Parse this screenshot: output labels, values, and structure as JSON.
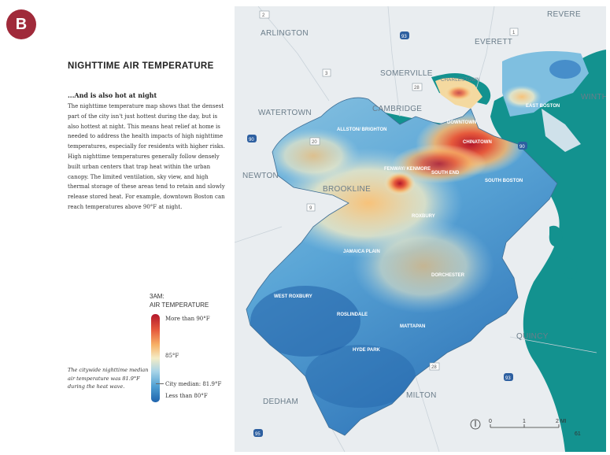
{
  "panel": {
    "badge": "B"
  },
  "text_panel": {
    "title": "NIGHTTIME AIR TEMPERATURE",
    "subhead": "...And is also hot at night",
    "body": "The nighttime temperature map shows that the densest part of the city isn't just hottest during the day, but is also hottest at night. This means heat relief at home is needed to address the health impacts of high nighttime temperatures, especially for residents with higher risks. High nighttime temperatures generally follow densely built urban centers that trap heat within the urban canopy. The limited ventilation, sky view, and high thermal storage of these areas tend to retain and slowly release stored heat. For example, downtown Boston can reach temperatures above 90°F at night.",
    "note": "The citywide nighttime median air temperature was 81.9°F during the heat wave."
  },
  "legend": {
    "title_line1": "3AM:",
    "title_line2": "AIR TEMPERATURE",
    "high": "More than 90°F",
    "mid": "85°F",
    "median": "City median: 81.9°F",
    "low": "Less than 80°F",
    "colors": [
      "#b3172b",
      "#e65a3c",
      "#f7b267",
      "#f4ecc6",
      "#a8d4e8",
      "#4f9fd2",
      "#1f64ad"
    ]
  },
  "map": {
    "place_labels": [
      "ARLINGTON",
      "EVERETT",
      "REVERE",
      "SOMERVILLE",
      "CHARLESTOWN",
      "WINTHR",
      "WATERTOWN",
      "CAMBRIDGE",
      "EAST BOSTON",
      "DOWNTOWN",
      "CHINATOWN",
      "ALLSTON/ BRIGHTON",
      "NEWTON",
      "FENWAY/ KENMORE",
      "SOUTH END",
      "SOUTH BOSTON",
      "BROOKLINE",
      "ROXBURY",
      "JAMAICA PLAIN",
      "DORCHESTER",
      "WEST ROXBURY",
      "ROSLINDALE",
      "MATTAPAN",
      "HYDE PARK",
      "QUINCY",
      "MILTON",
      "DEDHAM"
    ],
    "route_shields": [
      "2",
      "93",
      "1",
      "3",
      "28",
      "20",
      "90",
      "90",
      "9",
      "28",
      "93",
      "95"
    ],
    "scale": {
      "zero": "0",
      "one": "1",
      "two": "2 MI"
    },
    "page_number": "61",
    "colors": {
      "water": "#13928f",
      "land": "#e8ecef",
      "hot": "#c42c2a",
      "cool": "#2e7dbf"
    }
  }
}
